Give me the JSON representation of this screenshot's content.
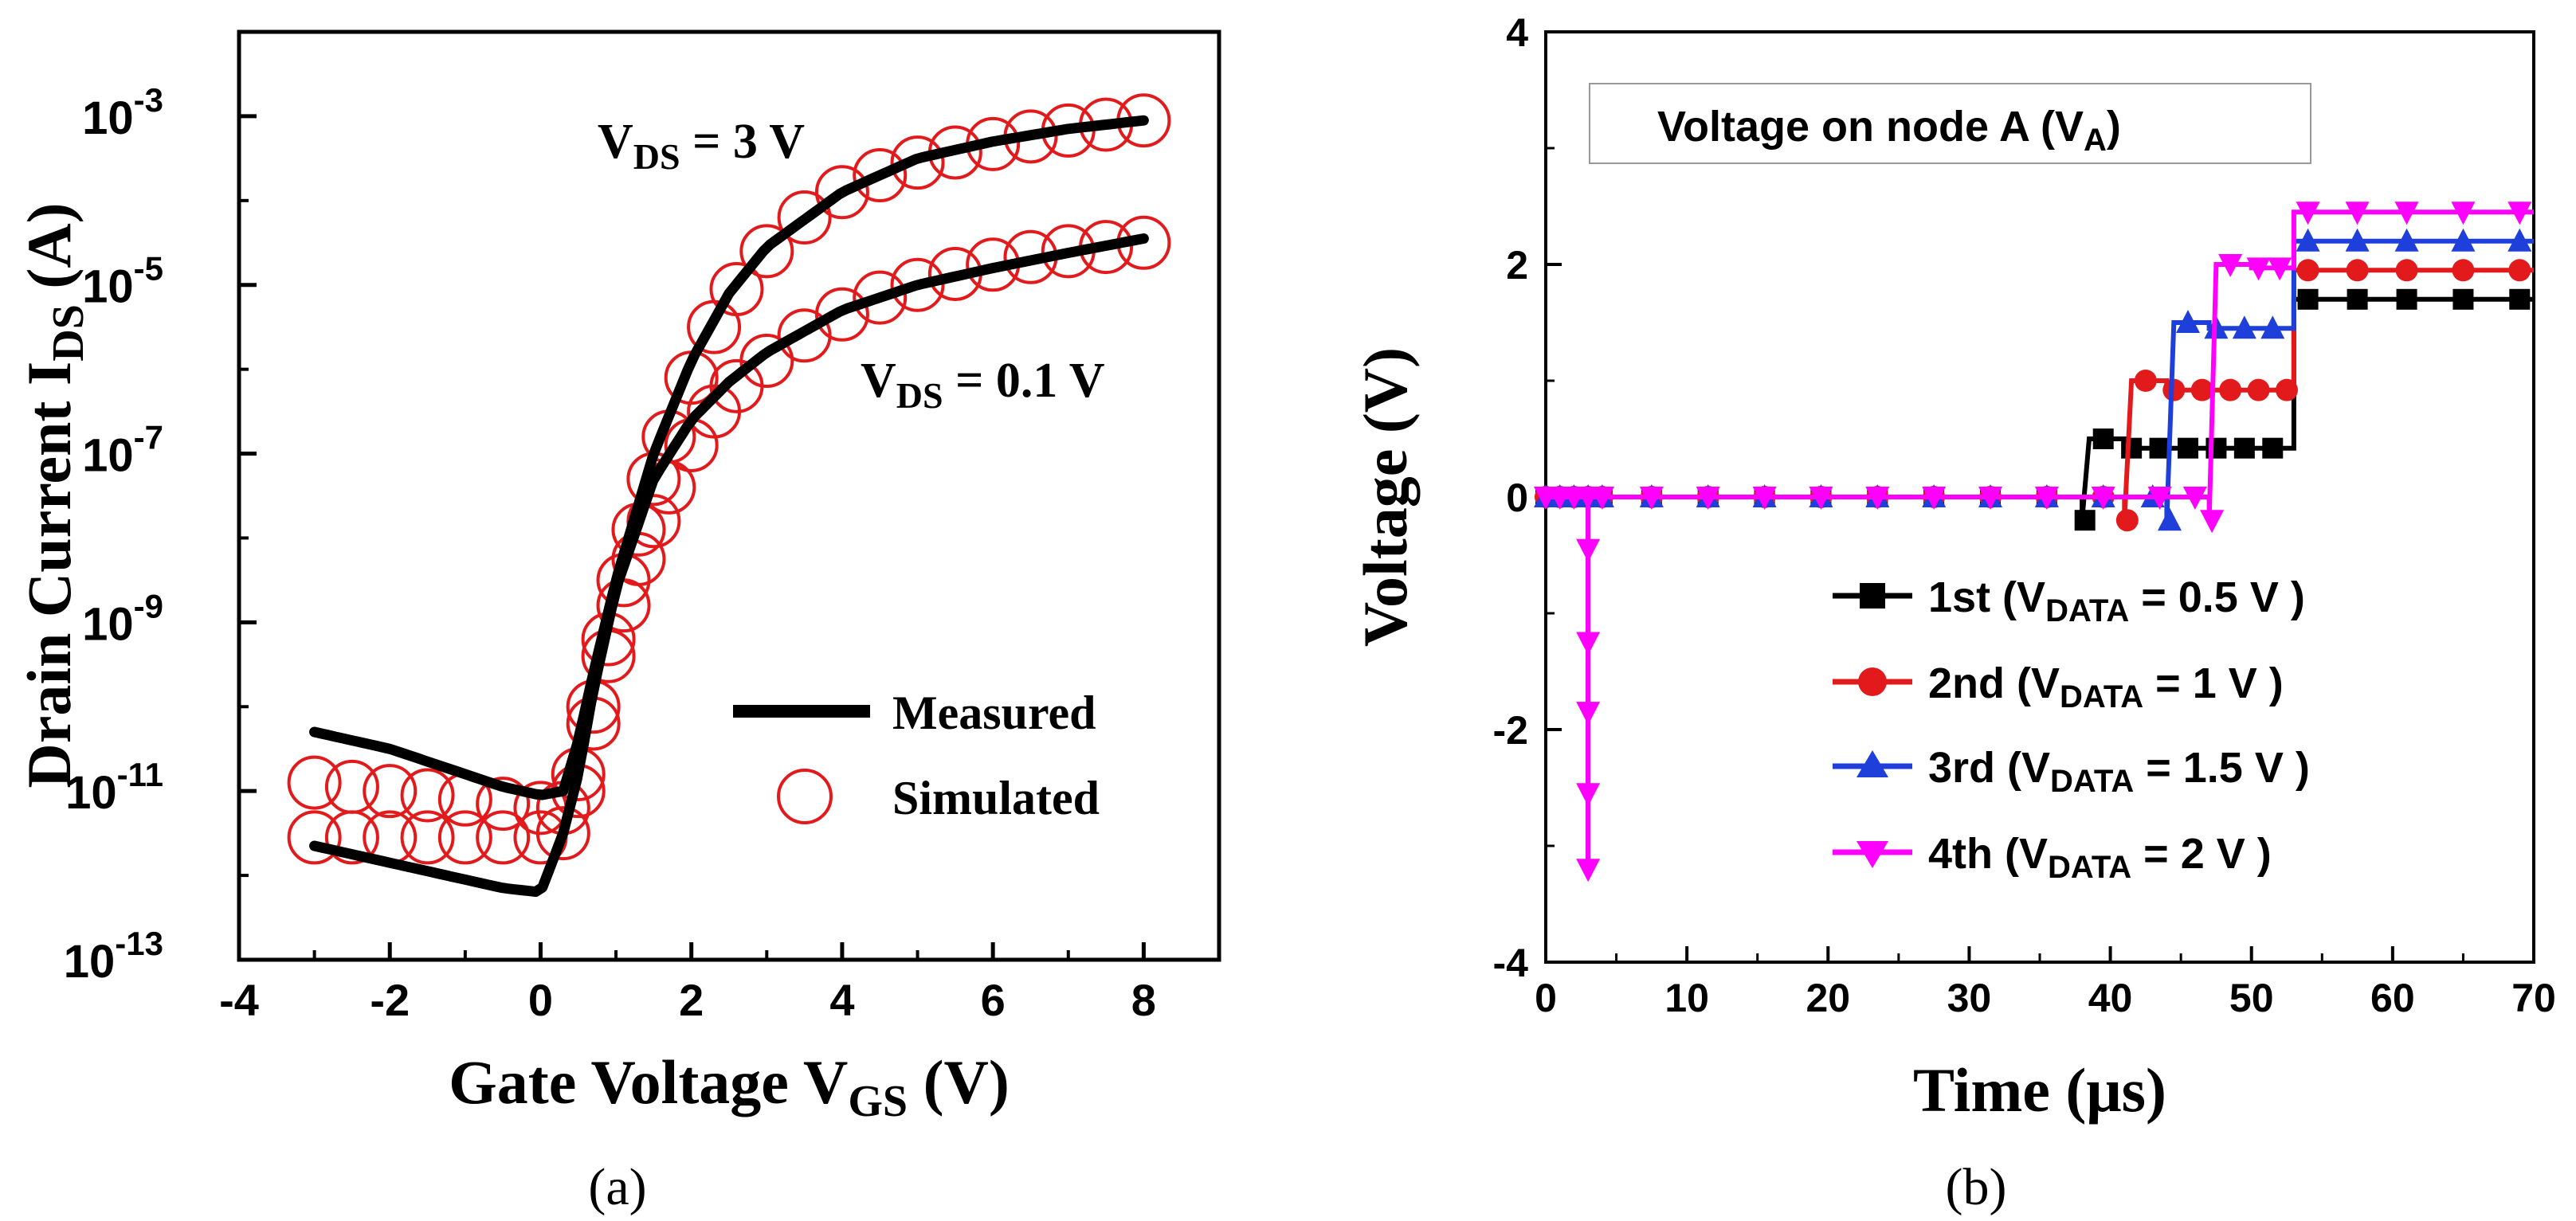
{
  "chart_data": [
    {
      "panel": "(a)",
      "type": "line",
      "title": "",
      "xlabel": "Gate Voltage  V",
      "xlabel_sub": "GS",
      "xlabel_unit": " (V)",
      "ylabel": "Drain Current  I",
      "ylabel_sub": "DS",
      "ylabel_unit": " (A)",
      "xlim": [
        -4,
        9
      ],
      "ylim_log10": [
        -13,
        -2
      ],
      "xticks": [
        -4,
        -2,
        0,
        2,
        4,
        6,
        8
      ],
      "xtick_labels": [
        "-4",
        "-2",
        "0",
        "2",
        "4",
        "6",
        "8"
      ],
      "yticks_exp": [
        -13,
        -11,
        -9,
        -7,
        -5,
        -3
      ],
      "ytick_base": "10",
      "ytick_exp_labels": [
        "-13",
        "-11",
        "-9",
        "-7",
        "-5",
        "-3"
      ],
      "annotations": [
        {
          "name": "vds-3v-label",
          "prefix": "V",
          "sub": "DS",
          "text": " = 3 V",
          "x": 1.3,
          "y_log": -3.0
        },
        {
          "name": "vds-0.1v-label",
          "prefix": "V",
          "sub": "DS",
          "text": " = 0.1 V",
          "x": 3.7,
          "y_log": -6.3
        }
      ],
      "legend": {
        "position": "right-middle",
        "entries": [
          {
            "label": "Measured",
            "style": "line",
            "color": "#000000"
          },
          {
            "label": "Simulated",
            "style": "open-circle",
            "color": "#e31a1c"
          }
        ]
      },
      "series": [
        {
          "name": "Measured VDS = 3 V",
          "style": "line",
          "color": "#000000",
          "x": [
            -3,
            -2,
            -1,
            -0.5,
            0,
            0.3,
            0.5,
            0.7,
            1.0,
            1.5,
            2.0,
            2.5,
            3,
            4,
            5,
            6,
            7,
            8
          ],
          "y_log10": [
            -10.3,
            -10.5,
            -10.8,
            -10.95,
            -11.05,
            -11.0,
            -10.4,
            -9.6,
            -8.5,
            -7.0,
            -5.9,
            -5.1,
            -4.55,
            -3.9,
            -3.5,
            -3.3,
            -3.15,
            -3.05
          ]
        },
        {
          "name": "Measured VDS = 0.1 V",
          "style": "line",
          "color": "#000000",
          "x": [
            -3,
            -2,
            -1,
            -0.5,
            0,
            0.3,
            0.5,
            0.7,
            1.0,
            1.5,
            2.0,
            2.5,
            3,
            4,
            5,
            6,
            7,
            8
          ],
          "y_log10": [
            -11.65,
            -11.85,
            -12.05,
            -12.15,
            -12.2,
            -11.5,
            -10.8,
            -9.8,
            -8.6,
            -7.3,
            -6.6,
            -6.15,
            -5.8,
            -5.3,
            -5.0,
            -4.8,
            -4.62,
            -4.45
          ]
        },
        {
          "name": "Simulated VDS = 3 V",
          "style": "open-circle",
          "color": "#e31a1c",
          "x": [
            -3,
            -2.5,
            -2,
            -1.5,
            -1,
            -0.5,
            0,
            0.3,
            0.5,
            0.7,
            0.9,
            1.1,
            1.3,
            1.5,
            1.7,
            2.0,
            2.3,
            2.6,
            3.0,
            3.5,
            4.0,
            4.5,
            5.0,
            5.5,
            6.0,
            6.5,
            7.0,
            7.5,
            8.0
          ],
          "y_log10": [
            -10.9,
            -10.95,
            -11.0,
            -11.05,
            -11.1,
            -11.15,
            -11.2,
            -11.2,
            -10.8,
            -10.0,
            -9.2,
            -8.5,
            -7.9,
            -7.3,
            -6.8,
            -6.1,
            -5.5,
            -5.05,
            -4.6,
            -4.2,
            -3.9,
            -3.7,
            -3.55,
            -3.43,
            -3.33,
            -3.24,
            -3.17,
            -3.1,
            -3.05
          ]
        },
        {
          "name": "Simulated VDS = 0.1 V",
          "style": "open-circle",
          "color": "#e31a1c",
          "x": [
            -3,
            -2.5,
            -2,
            -1.5,
            -1,
            -0.5,
            0,
            0.3,
            0.5,
            0.7,
            0.9,
            1.1,
            1.3,
            1.5,
            1.7,
            2.0,
            2.3,
            2.6,
            3.0,
            3.5,
            4.0,
            4.5,
            5.0,
            5.5,
            6.0,
            6.5,
            7.0,
            7.5,
            8.0
          ],
          "y_log10": [
            -11.55,
            -11.55,
            -11.55,
            -11.55,
            -11.55,
            -11.55,
            -11.55,
            -11.5,
            -11.0,
            -10.2,
            -9.4,
            -8.8,
            -8.25,
            -7.8,
            -7.4,
            -6.9,
            -6.5,
            -6.2,
            -5.9,
            -5.6,
            -5.35,
            -5.15,
            -5.0,
            -4.87,
            -4.76,
            -4.67,
            -4.6,
            -4.55,
            -4.5
          ]
        }
      ]
    },
    {
      "panel": "(b)",
      "type": "line",
      "title": "",
      "xlabel": "Time (μs)",
      "ylabel": "Voltage (V)",
      "xlim": [
        0,
        70
      ],
      "ylim": [
        -4,
        4
      ],
      "xticks": [
        0,
        10,
        20,
        30,
        40,
        50,
        60,
        70
      ],
      "xtick_labels": [
        "0",
        "10",
        "20",
        "30",
        "40",
        "50",
        "60",
        "70"
      ],
      "yticks": [
        -4,
        -2,
        0,
        2,
        4
      ],
      "ytick_labels": [
        "-4",
        "-2",
        "0",
        "2",
        "4"
      ],
      "annotation_box": {
        "text": "Voltage on node A (V",
        "sub": "A",
        "suffix": ")"
      },
      "legend": {
        "position": "right-middle",
        "entries": [
          {
            "label": "1st  (V",
            "sub": "DATA",
            "suffix": " = 0.5 V )",
            "color": "#000000",
            "marker": "square"
          },
          {
            "label": "2nd (V",
            "sub": "DATA",
            "suffix": " = 1 V )",
            "color": "#e31a1c",
            "marker": "circle"
          },
          {
            "label": "3rd  (V",
            "sub": "DATA",
            "suffix": " = 1.5 V )",
            "color": "#1f3fdb",
            "marker": "triangle-up"
          },
          {
            "label": "4th  (V",
            "sub": "DATA",
            "suffix": " = 2 V )",
            "color": "#ff00ff",
            "marker": "triangle-down"
          }
        ]
      },
      "series": [
        {
          "name": "1st",
          "color": "#000000",
          "marker": "square",
          "t": [
            0,
            3,
            3,
            3,
            38,
            38,
            38.5,
            41,
            41,
            53,
            53,
            70
          ],
          "v": [
            0,
            0,
            -3.2,
            0,
            0,
            -0.2,
            0.5,
            0.5,
            0.42,
            0.42,
            1.7,
            1.7
          ],
          "marker_t": [
            0,
            1,
            2,
            3,
            4,
            7.5,
            11.5,
            15.5,
            19.5,
            23.5,
            27.5,
            31.5,
            35.5,
            38.2,
            39.5,
            41.5,
            43.5,
            45.5,
            47.5,
            49.5,
            51.5,
            54,
            57.5,
            61,
            65,
            69
          ]
        },
        {
          "name": "2nd",
          "color": "#e31a1c",
          "marker": "circle",
          "t": [
            0,
            3,
            3,
            3,
            41,
            41,
            41.5,
            44,
            44,
            53,
            53,
            70
          ],
          "v": [
            0,
            0,
            -3.2,
            0,
            0,
            -0.2,
            1.0,
            1.0,
            0.92,
            0.92,
            1.95,
            1.95
          ],
          "marker_t": [
            0,
            1,
            2,
            3,
            4,
            7.5,
            11.5,
            15.5,
            19.5,
            23.5,
            27.5,
            31.5,
            35.5,
            39.5,
            41.2,
            42.5,
            44.5,
            46.5,
            48.5,
            50.5,
            52.5,
            54,
            57.5,
            61,
            65,
            69
          ]
        },
        {
          "name": "3rd",
          "color": "#1f3fdb",
          "marker": "triangle-up",
          "t": [
            0,
            3,
            3,
            3,
            44,
            44,
            44.5,
            47,
            47,
            53,
            53,
            70
          ],
          "v": [
            0,
            0,
            -3.2,
            0,
            0,
            -0.2,
            1.5,
            1.5,
            1.45,
            1.45,
            2.2,
            2.2
          ],
          "marker_t": [
            0,
            1,
            2,
            3,
            4,
            7.5,
            11.5,
            15.5,
            19.5,
            23.5,
            27.5,
            31.5,
            35.5,
            39.5,
            43,
            44.2,
            45.5,
            47.5,
            49.5,
            51.5,
            54,
            57.5,
            61,
            65,
            69
          ]
        },
        {
          "name": "4th",
          "color": "#ff00ff",
          "marker": "triangle-down",
          "t": [
            0,
            3,
            3,
            3,
            47,
            47,
            47.5,
            50,
            50,
            53,
            53,
            70
          ],
          "v": [
            0,
            0,
            -3.2,
            0,
            0,
            -0.2,
            2.0,
            2.0,
            1.97,
            1.97,
            2.45,
            2.45
          ],
          "marker_t": [
            0,
            1,
            2,
            3,
            4,
            7.5,
            11.5,
            15.5,
            19.5,
            23.5,
            27.5,
            31.5,
            35.5,
            39.5,
            43.5,
            46,
            47.2,
            48.5,
            50.5,
            52,
            54,
            57.5,
            61,
            65,
            69
          ],
          "spike_marker_v": [
            -3.2,
            -2.55,
            -1.85,
            -1.25,
            -0.45
          ]
        }
      ]
    }
  ]
}
